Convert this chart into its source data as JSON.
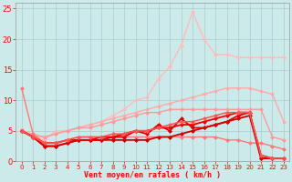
{
  "bg_color": "#cceaea",
  "grid_color": "#aacccc",
  "xlabel": "Vent moyen/en rafales ( km/h )",
  "xlim": [
    -0.5,
    23.5
  ],
  "ylim": [
    0,
    26
  ],
  "yticks": [
    0,
    5,
    10,
    15,
    20,
    25
  ],
  "xticks": [
    0,
    1,
    2,
    3,
    4,
    5,
    6,
    7,
    8,
    9,
    10,
    11,
    12,
    13,
    14,
    15,
    16,
    17,
    18,
    19,
    20,
    21,
    22,
    23
  ],
  "lines": [
    {
      "x": [
        0,
        1,
        2,
        3,
        4,
        5,
        6,
        7,
        8,
        9,
        10,
        11,
        12,
        13,
        14,
        15,
        16,
        17,
        18,
        19,
        20,
        21,
        22,
        23
      ],
      "y": [
        5.2,
        4.0,
        3.5,
        5.0,
        5.0,
        5.5,
        6.0,
        6.5,
        7.5,
        8.5,
        10.0,
        10.5,
        13.5,
        15.5,
        19.0,
        24.5,
        20.0,
        17.5,
        17.5,
        17.0,
        17.0,
        17.0,
        17.0,
        17.0
      ],
      "color": "#ffbbbb",
      "lw": 1.0,
      "marker": "D",
      "ms": 2.5
    },
    {
      "x": [
        0,
        1,
        2,
        3,
        4,
        5,
        6,
        7,
        8,
        9,
        10,
        11,
        12,
        13,
        14,
        15,
        16,
        17,
        18,
        19,
        20,
        21,
        22,
        23
      ],
      "y": [
        5.0,
        4.5,
        4.0,
        4.5,
        5.0,
        5.5,
        6.0,
        6.5,
        7.0,
        7.5,
        8.0,
        8.5,
        9.0,
        9.5,
        10.0,
        10.5,
        11.0,
        11.5,
        12.0,
        12.0,
        12.0,
        11.5,
        11.0,
        6.5
      ],
      "color": "#ffaaaa",
      "lw": 1.0,
      "marker": "D",
      "ms": 2.5
    },
    {
      "x": [
        0,
        1,
        2,
        3,
        4,
        5,
        6,
        7,
        8,
        9,
        10,
        11,
        12,
        13,
        14,
        15,
        16,
        17,
        18,
        19,
        20,
        21,
        22,
        23
      ],
      "y": [
        5.0,
        4.2,
        4.0,
        4.5,
        5.0,
        5.5,
        5.5,
        6.0,
        6.5,
        7.0,
        7.5,
        8.0,
        8.0,
        8.5,
        8.5,
        8.5,
        8.5,
        8.5,
        8.5,
        8.5,
        8.5,
        8.5,
        4.0,
        3.5
      ],
      "color": "#ff9999",
      "lw": 1.0,
      "marker": "D",
      "ms": 2.5
    },
    {
      "x": [
        0,
        1,
        2,
        3,
        4,
        5,
        6,
        7,
        8,
        9,
        10,
        11,
        12,
        13,
        14,
        15,
        16,
        17,
        18,
        19,
        20,
        21,
        22,
        23
      ],
      "y": [
        12.0,
        4.5,
        3.0,
        3.0,
        3.5,
        4.0,
        4.0,
        4.0,
        4.0,
        4.0,
        4.0,
        4.0,
        4.0,
        4.0,
        4.0,
        4.0,
        4.0,
        4.0,
        3.5,
        3.5,
        3.0,
        3.0,
        2.5,
        2.0
      ],
      "color": "#ff7777",
      "lw": 1.0,
      "marker": "D",
      "ms": 2.5
    },
    {
      "x": [
        0,
        1,
        2,
        3,
        4,
        5,
        6,
        7,
        8,
        9,
        10,
        11,
        12,
        13,
        14,
        15,
        16,
        17,
        18,
        19,
        20,
        21,
        22,
        23
      ],
      "y": [
        5.0,
        4.0,
        2.5,
        2.5,
        3.0,
        3.5,
        3.5,
        3.5,
        3.5,
        3.5,
        3.5,
        3.5,
        4.0,
        4.0,
        4.5,
        5.0,
        5.5,
        6.0,
        6.5,
        7.0,
        7.5,
        0.5,
        0.5,
        0.5
      ],
      "color": "#cc0000",
      "lw": 1.3,
      "marker": "D",
      "ms": 2.5
    },
    {
      "x": [
        0,
        1,
        2,
        3,
        4,
        5,
        6,
        7,
        8,
        9,
        10,
        11,
        12,
        13,
        14,
        15,
        16,
        17,
        18,
        19,
        20,
        21,
        22,
        23
      ],
      "y": [
        5.0,
        4.0,
        2.5,
        2.5,
        3.0,
        3.5,
        3.5,
        3.5,
        4.0,
        4.0,
        5.0,
        4.5,
        6.0,
        5.0,
        7.0,
        5.5,
        5.5,
        6.0,
        6.5,
        7.5,
        8.0,
        0.5,
        0.5,
        0.5
      ],
      "color": "#dd0000",
      "lw": 1.3,
      "marker": "D",
      "ms": 2.5
    },
    {
      "x": [
        0,
        1,
        2,
        3,
        4,
        5,
        6,
        7,
        8,
        9,
        10,
        11,
        12,
        13,
        14,
        15,
        16,
        17,
        18,
        19,
        20,
        21,
        22,
        23
      ],
      "y": [
        5.0,
        4.0,
        3.0,
        3.0,
        3.5,
        3.5,
        3.5,
        4.0,
        4.0,
        4.5,
        5.0,
        5.0,
        5.5,
        5.5,
        6.0,
        6.0,
        6.5,
        7.0,
        7.5,
        8.0,
        8.0,
        1.0,
        0.5,
        0.5
      ],
      "color": "#ee0000",
      "lw": 1.3,
      "marker": "D",
      "ms": 2.5
    },
    {
      "x": [
        0,
        1,
        2,
        3,
        4,
        5,
        6,
        7,
        8,
        9,
        10,
        11,
        12,
        13,
        14,
        15,
        16,
        17,
        18,
        19,
        20,
        21,
        22,
        23
      ],
      "y": [
        5.0,
        4.0,
        3.0,
        3.0,
        3.5,
        4.0,
        4.0,
        4.0,
        4.5,
        4.5,
        5.0,
        5.0,
        5.5,
        6.0,
        6.5,
        6.5,
        7.0,
        7.5,
        8.0,
        8.0,
        8.0,
        1.0,
        0.5,
        0.5
      ],
      "color": "#ff5555",
      "lw": 1.1,
      "marker": "D",
      "ms": 2.5
    }
  ]
}
